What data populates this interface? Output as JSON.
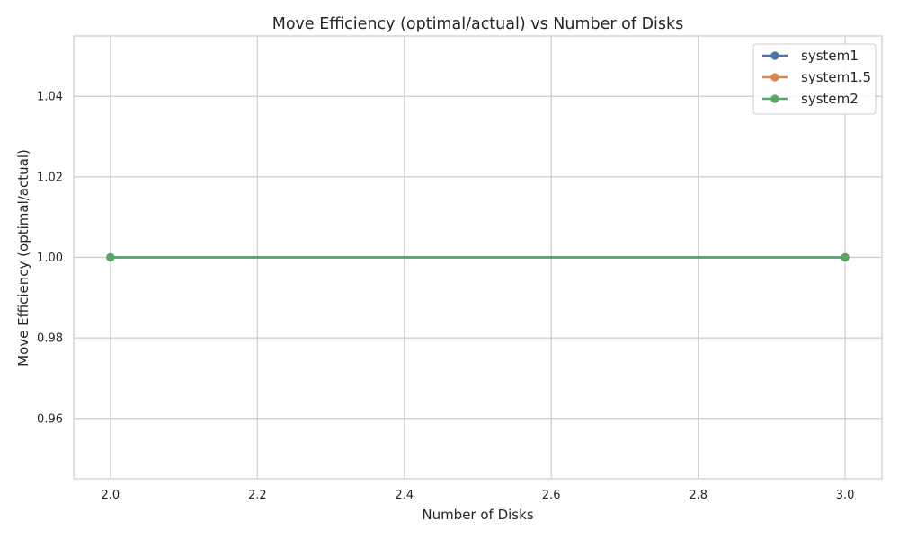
{
  "chart_data": {
    "type": "line",
    "title": "Move Efficiency (optimal/actual) vs Number of Disks",
    "xlabel": "Number of Disks",
    "ylabel": "Move Efficiency (optimal/actual)",
    "xlim": [
      1.95,
      3.05
    ],
    "ylim": [
      0.945,
      1.055
    ],
    "x_ticks": [
      "2.0",
      "2.2",
      "2.4",
      "2.6",
      "2.8",
      "3.0"
    ],
    "y_ticks": [
      "0.96",
      "0.98",
      "1.00",
      "1.02",
      "1.04"
    ],
    "grid": true,
    "legend_position": "top-right",
    "x": [
      2,
      3
    ],
    "series": [
      {
        "name": "system1",
        "values": [
          1.0,
          1.0
        ],
        "color": "#4c72b0"
      },
      {
        "name": "system1.5",
        "values": [
          1.0,
          1.0
        ],
        "color": "#dd8452"
      },
      {
        "name": "system2",
        "values": [
          1.0,
          1.0
        ],
        "color": "#55a868"
      }
    ]
  }
}
